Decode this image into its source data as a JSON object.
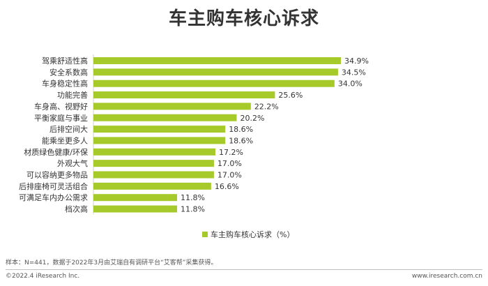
{
  "title": "车主购车核心诉求",
  "chart_data": {
    "type": "bar",
    "orientation": "horizontal",
    "categories": [
      "驾乘舒适性高",
      "安全系数高",
      "车身稳定性高",
      "功能完善",
      "车身高、视野好",
      "平衡家庭与事业",
      "后排空间大",
      "能乘坐更多人",
      "材质绿色健康/环保",
      "外观大气",
      "可以容纳更多物品",
      "后排座椅可灵活组合",
      "可满足车内办公需求",
      "档次高"
    ],
    "series": [
      {
        "name": "车主购车核心诉求（%）",
        "values": [
          34.9,
          34.5,
          34.0,
          25.6,
          22.2,
          20.2,
          18.6,
          18.6,
          17.2,
          17.0,
          17.0,
          16.6,
          11.8,
          11.8
        ],
        "labels": [
          "34.9%",
          "34.5%",
          "34.0%",
          "25.6%",
          "22.2%",
          "20.2%",
          "18.6%",
          "18.6%",
          "17.2%",
          "17.0%",
          "17.0%",
          "16.6%",
          "11.8%",
          "11.8%"
        ]
      }
    ],
    "xlim": [
      0,
      40
    ],
    "grid": false,
    "legend_position": "bottom",
    "bar_color": "#a6ca2a"
  },
  "note": "样本：N=441，数据于2022年3月由艾瑞自有调研平台“艾客帮”采集获得。",
  "footer": {
    "copyright": "©2022.4 iResearch Inc.",
    "website": "www.iresearch.com.cn"
  }
}
